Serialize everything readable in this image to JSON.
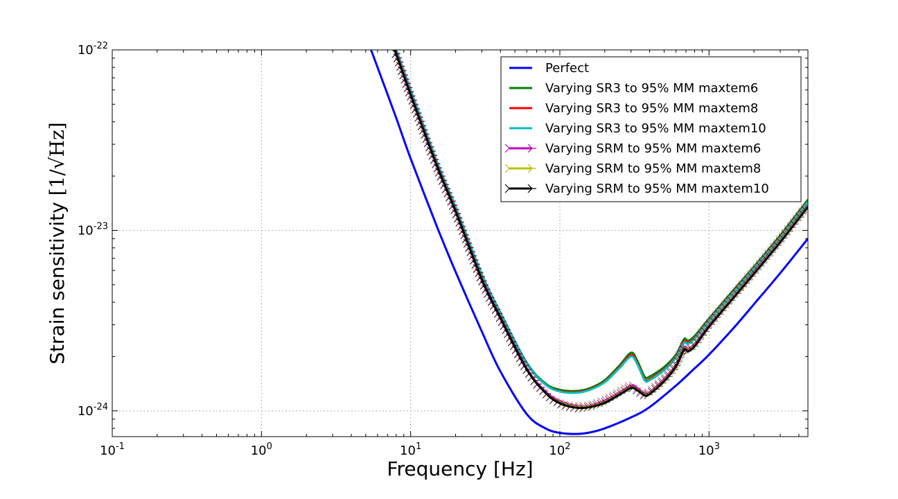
{
  "chart_data": {
    "type": "line",
    "xscale": "log",
    "yscale": "log",
    "xlim": [
      0.1,
      4600
    ],
    "ylim": [
      7.2e-25,
      1e-22
    ],
    "xlabel": "Frequency [Hz]",
    "ylabel_text": "Strain sensitivity ",
    "ylabel_unit": "[1/√Hz]",
    "grid": true,
    "legend_position": "top-right",
    "x_ticks": [
      {
        "base": "10",
        "exp": "-1",
        "value": 0.1
      },
      {
        "base": "10",
        "exp": "0",
        "value": 1
      },
      {
        "base": "10",
        "exp": "1",
        "value": 10
      },
      {
        "base": "10",
        "exp": "2",
        "value": 100
      },
      {
        "base": "10",
        "exp": "3",
        "value": 1000
      }
    ],
    "y_ticks": [
      {
        "base": "10",
        "exp": "-22",
        "value": 1e-22
      },
      {
        "base": "10",
        "exp": "-23",
        "value": 1e-23
      },
      {
        "base": "10",
        "exp": "-24",
        "value": 1e-24
      }
    ],
    "series": [
      {
        "name": "Perfect",
        "color": "#0000ff",
        "marker": "none",
        "x": [
          5,
          6,
          8,
          10,
          15,
          20,
          30,
          40,
          60,
          80,
          100,
          130,
          160,
          200,
          300,
          400,
          600,
          800,
          1000,
          1500,
          2000,
          3000,
          4600
        ],
        "y": [
          1.2e-22,
          8e-23,
          4.2e-23,
          2.5e-23,
          1.05e-23,
          5.9e-24,
          2.75e-24,
          1.65e-24,
          9.6e-25,
          8e-25,
          7.55e-25,
          7.45e-25,
          7.6e-25,
          8e-25,
          9.2e-25,
          1.05e-24,
          1.38e-24,
          1.72e-24,
          2.05e-24,
          2.95e-24,
          3.9e-24,
          5.8e-24,
          9e-24
        ]
      },
      {
        "name": "Varying SR3 to 95% MM maxtem6",
        "color": "#008000",
        "marker": "none",
        "x": [
          7,
          8,
          10,
          15,
          20,
          30,
          40,
          60,
          80,
          100,
          130,
          160,
          200,
          250,
          300,
          330,
          370,
          400,
          500,
          600,
          680,
          720,
          800,
          1000,
          1500,
          2000,
          3000,
          4600
        ],
        "y": [
          1.3e-22,
          1e-22,
          6e-23,
          2.4e-23,
          1.35e-23,
          5.7e-24,
          3.5e-24,
          1.85e-24,
          1.42e-24,
          1.31e-24,
          1.29e-24,
          1.34e-24,
          1.48e-24,
          1.78e-24,
          2.1e-24,
          1.9e-24,
          1.55e-24,
          1.55e-24,
          1.75e-24,
          2.05e-24,
          2.5e-24,
          2.45e-24,
          2.6e-24,
          3.25e-24,
          4.8e-24,
          6.3e-24,
          9.4e-24,
          1.48e-23
        ]
      },
      {
        "name": "Varying SR3 to 95% MM maxtem8",
        "color": "#ff0000",
        "marker": "none",
        "x": [
          7,
          8,
          10,
          15,
          20,
          30,
          40,
          60,
          80,
          100,
          130,
          160,
          200,
          250,
          300,
          330,
          370,
          400,
          500,
          600,
          680,
          720,
          800,
          1000,
          1500,
          2000,
          3000,
          4600
        ],
        "y": [
          1.29e-22,
          9.9e-23,
          5.95e-23,
          2.38e-23,
          1.34e-23,
          5.65e-24,
          3.47e-24,
          1.83e-24,
          1.4e-24,
          1.29e-24,
          1.27e-24,
          1.32e-24,
          1.45e-24,
          1.74e-24,
          2.04e-24,
          1.85e-24,
          1.5e-24,
          1.5e-24,
          1.7e-24,
          2e-24,
          2.42e-24,
          2.38e-24,
          2.53e-24,
          3.18e-24,
          4.7e-24,
          6.2e-24,
          9.2e-24,
          1.45e-23
        ]
      },
      {
        "name": "Varying SR3 to 95% MM maxtem10",
        "color": "#00bfbf",
        "marker": "none",
        "x": [
          7,
          8,
          10,
          15,
          20,
          30,
          40,
          60,
          80,
          100,
          130,
          160,
          200,
          250,
          300,
          330,
          370,
          400,
          500,
          600,
          680,
          720,
          800,
          1000,
          1500,
          2000,
          3000,
          4600
        ],
        "y": [
          1.29e-22,
          9.9e-23,
          5.95e-23,
          2.38e-23,
          1.34e-23,
          5.65e-24,
          3.47e-24,
          1.83e-24,
          1.4e-24,
          1.28e-24,
          1.26e-24,
          1.31e-24,
          1.44e-24,
          1.72e-24,
          2e-24,
          1.82e-24,
          1.48e-24,
          1.48e-24,
          1.68e-24,
          1.98e-24,
          2.38e-24,
          2.35e-24,
          2.5e-24,
          3.15e-24,
          4.65e-24,
          6.15e-24,
          9.1e-24,
          1.44e-23
        ]
      },
      {
        "name": "Varying SRM to 95% MM maxtem6",
        "color": "#bf00bf",
        "marker": "tri",
        "x": [
          7,
          8,
          10,
          15,
          20,
          30,
          40,
          60,
          80,
          100,
          130,
          160,
          200,
          250,
          300,
          330,
          370,
          400,
          500,
          600,
          680,
          720,
          800,
          1000,
          1500,
          2000,
          3000,
          4600
        ],
        "y": [
          1.25e-22,
          9.6e-23,
          5.7e-23,
          2.3e-23,
          1.29e-23,
          5.4e-24,
          3.3e-24,
          1.72e-24,
          1.28e-24,
          1.13e-24,
          1.06e-24,
          1.07e-24,
          1.14e-24,
          1.26e-24,
          1.38e-24,
          1.34e-24,
          1.25e-24,
          1.27e-24,
          1.5e-24,
          1.8e-24,
          2.25e-24,
          2.2e-24,
          2.35e-24,
          3e-24,
          4.45e-24,
          5.9e-24,
          8.8e-24,
          1.38e-23
        ]
      },
      {
        "name": "Varying SRM to 95% MM maxtem8",
        "color": "#bfbf00",
        "marker": "tri",
        "x": [
          7,
          8,
          10,
          15,
          20,
          30,
          40,
          60,
          80,
          100,
          130,
          160,
          200,
          250,
          300,
          330,
          370,
          400,
          500,
          600,
          680,
          720,
          800,
          1000,
          1500,
          2000,
          3000,
          4600
        ],
        "y": [
          1.24e-22,
          9.5e-23,
          5.65e-23,
          2.28e-23,
          1.28e-23,
          5.35e-24,
          3.27e-24,
          1.7e-24,
          1.26e-24,
          1.11e-24,
          1.05e-24,
          1.06e-24,
          1.12e-24,
          1.24e-24,
          1.35e-24,
          1.31e-24,
          1.23e-24,
          1.25e-24,
          1.47e-24,
          1.77e-24,
          2.2e-24,
          2.16e-24,
          2.3e-24,
          2.95e-24,
          4.4e-24,
          5.8e-24,
          8.7e-24,
          1.36e-23
        ]
      },
      {
        "name": "Varying SRM to 95% MM maxtem10",
        "color": "#000000",
        "marker": "tri",
        "x": [
          7,
          8,
          10,
          15,
          20,
          30,
          40,
          60,
          80,
          100,
          130,
          160,
          200,
          250,
          300,
          330,
          370,
          400,
          500,
          600,
          680,
          720,
          800,
          1000,
          1500,
          2000,
          3000,
          4600
        ],
        "y": [
          1.24e-22,
          9.5e-23,
          5.65e-23,
          2.28e-23,
          1.28e-23,
          5.35e-24,
          3.27e-24,
          1.7e-24,
          1.26e-24,
          1.1e-24,
          1.04e-24,
          1.05e-24,
          1.11e-24,
          1.23e-24,
          1.34e-24,
          1.3e-24,
          1.22e-24,
          1.24e-24,
          1.46e-24,
          1.76e-24,
          2.18e-24,
          2.14e-24,
          2.28e-24,
          2.93e-24,
          4.35e-24,
          5.75e-24,
          8.6e-24,
          1.35e-23
        ]
      }
    ]
  }
}
